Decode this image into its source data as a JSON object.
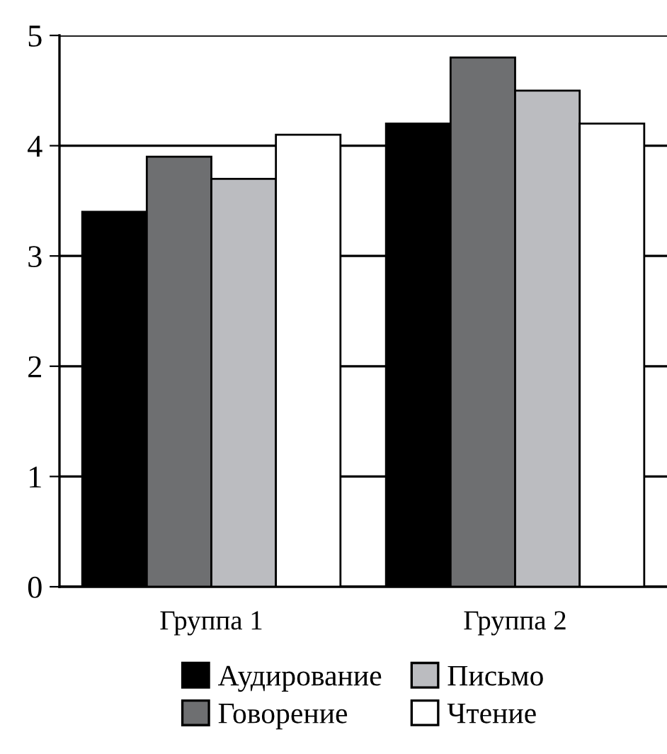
{
  "chart_data": {
    "type": "bar",
    "categories": [
      "Группа 1",
      "Группа 2"
    ],
    "series": [
      {
        "name": "Аудирование",
        "color": "#000000",
        "values": [
          3.4,
          4.2
        ]
      },
      {
        "name": "Говорение",
        "color": "#6e6f71",
        "values": [
          3.9,
          4.8
        ]
      },
      {
        "name": "Письмо",
        "color": "#bbbcc0",
        "values": [
          3.7,
          4.5
        ]
      },
      {
        "name": "Чтение",
        "color": "#ffffff",
        "values": [
          4.1,
          4.2
        ]
      }
    ],
    "ylim": [
      0,
      5
    ],
    "yticks": [
      0,
      1,
      2,
      3,
      4,
      5
    ],
    "grid": "y",
    "legend": "bottom"
  }
}
